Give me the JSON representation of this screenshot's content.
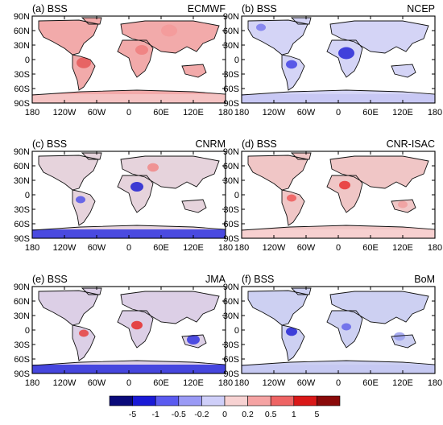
{
  "figure": {
    "panels": [
      {
        "label": "(a) BSS",
        "model": "ECMWF"
      },
      {
        "label": "(b) BSS",
        "model": "NCEP"
      },
      {
        "label": "(c) BSS",
        "model": "CNRM"
      },
      {
        "label": "(d) BSS",
        "model": "CNR-ISAC"
      },
      {
        "label": "(e) BSS",
        "model": "JMA"
      },
      {
        "label": "(f) BSS",
        "model": "BoM"
      }
    ],
    "lat_ticks": [
      "90N",
      "60N",
      "30N",
      "0",
      "30S",
      "60S",
      "90S"
    ],
    "lon_ticks": [
      "180",
      "120W",
      "60W",
      "0",
      "60E",
      "120E",
      "180"
    ]
  },
  "colorbar": {
    "colors": [
      "#0a0a7a",
      "#1a1ad6",
      "#5b5bf0",
      "#9a9af5",
      "#cfcff9",
      "#f7d2d2",
      "#f5a3a3",
      "#ee6464",
      "#d91818",
      "#8a0a0a"
    ],
    "tick_labels": [
      "-5",
      "-1",
      "-0.5",
      "-0.2",
      "0",
      "0.2",
      "0.5",
      "1",
      "5"
    ]
  }
}
